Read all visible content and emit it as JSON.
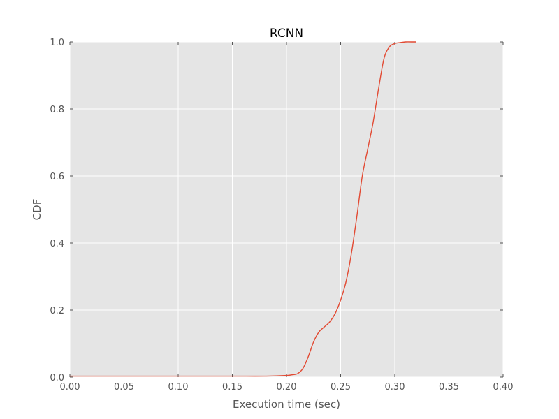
{
  "chart_data": {
    "type": "line",
    "title": "RCNN",
    "xlabel": "Execution time (sec)",
    "ylabel": "CDF",
    "xlim": [
      0.0,
      0.4
    ],
    "ylim": [
      0.0,
      1.0
    ],
    "xticks": [
      "0.00",
      "0.05",
      "0.10",
      "0.15",
      "0.20",
      "0.25",
      "0.30",
      "0.35",
      "0.40"
    ],
    "yticks": [
      "0.0",
      "0.2",
      "0.4",
      "0.6",
      "0.8",
      "1.0"
    ],
    "grid": true,
    "background_color": "#e5e5e5",
    "line_color": "#e24a33",
    "series": [
      {
        "x": [
          0.0,
          0.05,
          0.1,
          0.15,
          0.18,
          0.2,
          0.205,
          0.21,
          0.215,
          0.22,
          0.225,
          0.23,
          0.235,
          0.24,
          0.245,
          0.25,
          0.255,
          0.26,
          0.265,
          0.27,
          0.275,
          0.28,
          0.285,
          0.29,
          0.295,
          0.3,
          0.305,
          0.31,
          0.315,
          0.32
        ],
        "y": [
          0.003,
          0.003,
          0.003,
          0.003,
          0.003,
          0.005,
          0.007,
          0.01,
          0.025,
          0.06,
          0.105,
          0.135,
          0.15,
          0.165,
          0.19,
          0.23,
          0.285,
          0.37,
          0.48,
          0.6,
          0.68,
          0.76,
          0.86,
          0.95,
          0.985,
          0.995,
          0.998,
          1.0,
          1.0,
          1.0
        ]
      }
    ]
  }
}
